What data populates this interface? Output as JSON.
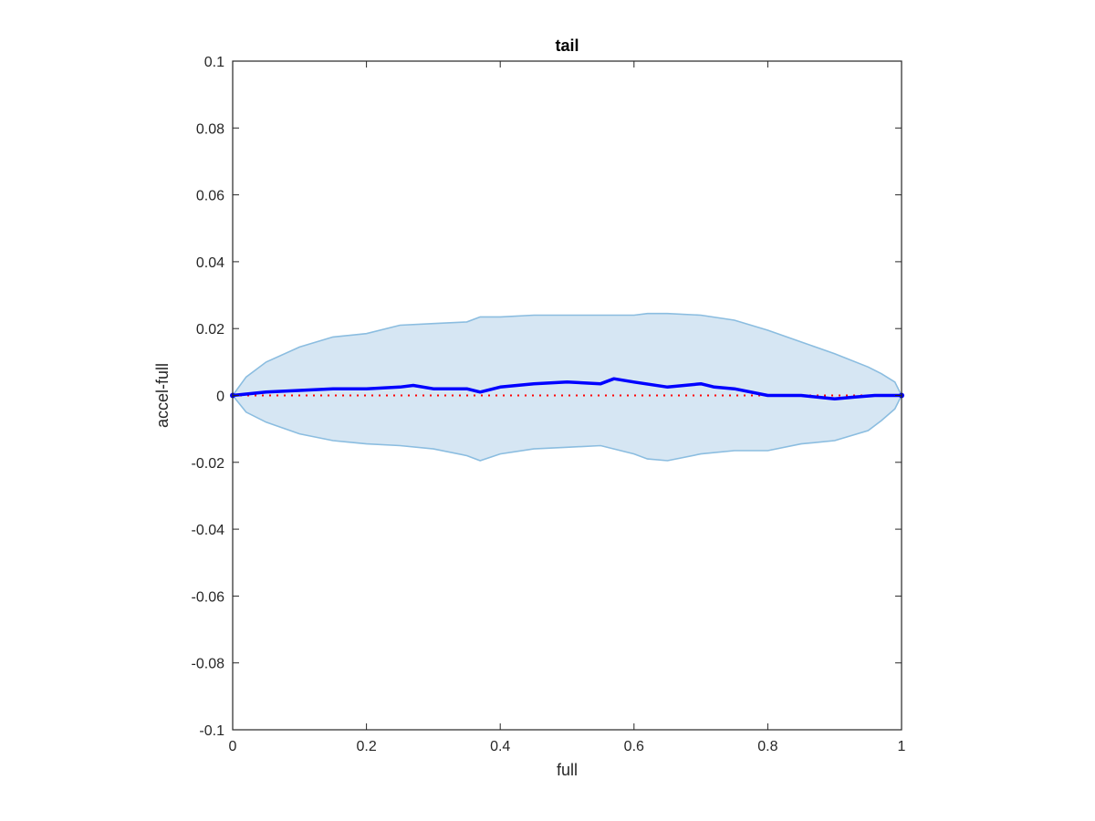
{
  "chart_data": {
    "type": "area",
    "title": "tail",
    "xlabel": "full",
    "ylabel": "accel-full",
    "xlim": [
      0,
      1
    ],
    "ylim": [
      -0.1,
      0.1
    ],
    "grid": false,
    "xticks": [
      0,
      0.2,
      0.4,
      0.6,
      0.8,
      1
    ],
    "xtick_labels": [
      "0",
      "0.2",
      "0.4",
      "0.6",
      "0.8",
      "1"
    ],
    "yticks": [
      -0.1,
      -0.08,
      -0.06,
      -0.04,
      -0.02,
      0,
      0.02,
      0.04,
      0.06,
      0.08,
      0.1
    ],
    "ytick_labels": [
      "-0.1",
      "-0.08",
      "-0.06",
      "-0.04",
      "-0.02",
      "0",
      "0.02",
      "0.04",
      "0.06",
      "0.08",
      "0.1"
    ],
    "band": {
      "x": [
        0,
        0.02,
        0.05,
        0.1,
        0.15,
        0.2,
        0.25,
        0.3,
        0.35,
        0.37,
        0.4,
        0.45,
        0.5,
        0.55,
        0.6,
        0.62,
        0.65,
        0.7,
        0.75,
        0.8,
        0.85,
        0.9,
        0.95,
        0.97,
        0.99,
        1
      ],
      "upper": [
        0,
        0.0055,
        0.01,
        0.0145,
        0.0175,
        0.0185,
        0.021,
        0.0215,
        0.022,
        0.0235,
        0.0235,
        0.024,
        0.024,
        0.024,
        0.024,
        0.0245,
        0.0245,
        0.024,
        0.0225,
        0.0195,
        0.016,
        0.0125,
        0.0085,
        0.0065,
        0.004,
        0
      ],
      "lower": [
        0,
        -0.005,
        -0.008,
        -0.0115,
        -0.0135,
        -0.0145,
        -0.015,
        -0.016,
        -0.018,
        -0.0195,
        -0.0175,
        -0.016,
        -0.0155,
        -0.015,
        -0.0175,
        -0.019,
        -0.0195,
        -0.0175,
        -0.0165,
        -0.0165,
        -0.0145,
        -0.0135,
        -0.0105,
        -0.0075,
        -0.004,
        0
      ],
      "fill_color": "#d6e6f3",
      "edge_color": "#8bbde0"
    },
    "series": [
      {
        "x": [
          0,
          0.05,
          0.1,
          0.15,
          0.2,
          0.25,
          0.27,
          0.3,
          0.35,
          0.37,
          0.4,
          0.45,
          0.5,
          0.55,
          0.57,
          0.6,
          0.65,
          0.7,
          0.72,
          0.75,
          0.8,
          0.85,
          0.9,
          0.93,
          0.96,
          1
        ],
        "y": [
          0,
          0.001,
          0.0015,
          0.002,
          0.002,
          0.0025,
          0.003,
          0.002,
          0.002,
          0.001,
          0.0025,
          0.0035,
          0.004,
          0.0035,
          0.005,
          0.004,
          0.0025,
          0.0035,
          0.0025,
          0.002,
          0.0,
          0.0,
          -0.001,
          -0.0005,
          0.0,
          0
        ],
        "color": "#0000ff",
        "style": "solid"
      },
      {
        "x": [
          0,
          1
        ],
        "y": [
          0,
          0
        ],
        "color": "#ff0000",
        "style": "dotted"
      }
    ]
  }
}
